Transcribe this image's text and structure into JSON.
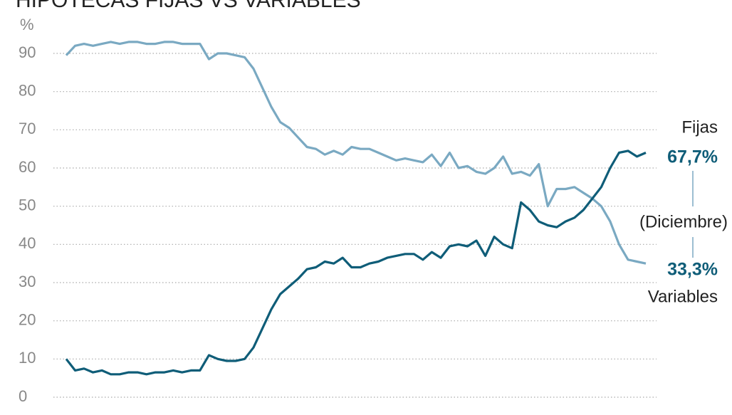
{
  "chart_data": {
    "type": "line",
    "title": "HIPOTECAS FIJAS VS VARIABLES",
    "y_unit": "%",
    "ylim": [
      0,
      90
    ],
    "yticks": [
      0,
      10,
      20,
      30,
      40,
      50,
      60,
      70,
      80,
      90
    ],
    "grid": true,
    "series": [
      {
        "name": "Variables",
        "color": "#7aa9c2",
        "values": [
          89.5,
          92,
          92.5,
          92,
          92.5,
          93,
          92.5,
          93,
          93,
          92.5,
          92.5,
          93,
          93,
          92.5,
          92.5,
          92.5,
          88.5,
          90,
          90,
          89.5,
          89,
          86,
          81,
          76,
          72,
          70.5,
          68,
          65.5,
          65,
          63.5,
          64.5,
          63.5,
          65.5,
          65,
          65,
          64,
          63,
          62,
          62.5,
          62,
          61.5,
          63.5,
          60.5,
          64,
          60,
          60.5,
          59,
          58.5,
          60,
          63,
          58.5,
          59,
          58,
          61,
          50,
          54.5,
          54.5,
          55,
          53.5,
          52,
          50,
          46,
          40,
          36,
          35.5,
          35
        ]
      },
      {
        "name": "Fijas",
        "color": "#0f5d78",
        "values": [
          10,
          7,
          7.5,
          6.5,
          7,
          6,
          6,
          6.5,
          6.5,
          6,
          6.5,
          6.5,
          7,
          6.5,
          7,
          7,
          11,
          10,
          9.5,
          9.5,
          10,
          13,
          18,
          23,
          27,
          29,
          31,
          33.5,
          34,
          35.5,
          35,
          36.5,
          34,
          34,
          35,
          35.5,
          36.5,
          37,
          37.5,
          37.5,
          36,
          38,
          36.5,
          39.5,
          40,
          39.5,
          41,
          37,
          42,
          40,
          39,
          51,
          49,
          46,
          45,
          44.5,
          46,
          47,
          49,
          52,
          55,
          60,
          64,
          64.5,
          63,
          64
        ]
      }
    ],
    "annotations": [
      "67,7%",
      "(Diciembre)",
      "33,3%"
    ]
  }
}
